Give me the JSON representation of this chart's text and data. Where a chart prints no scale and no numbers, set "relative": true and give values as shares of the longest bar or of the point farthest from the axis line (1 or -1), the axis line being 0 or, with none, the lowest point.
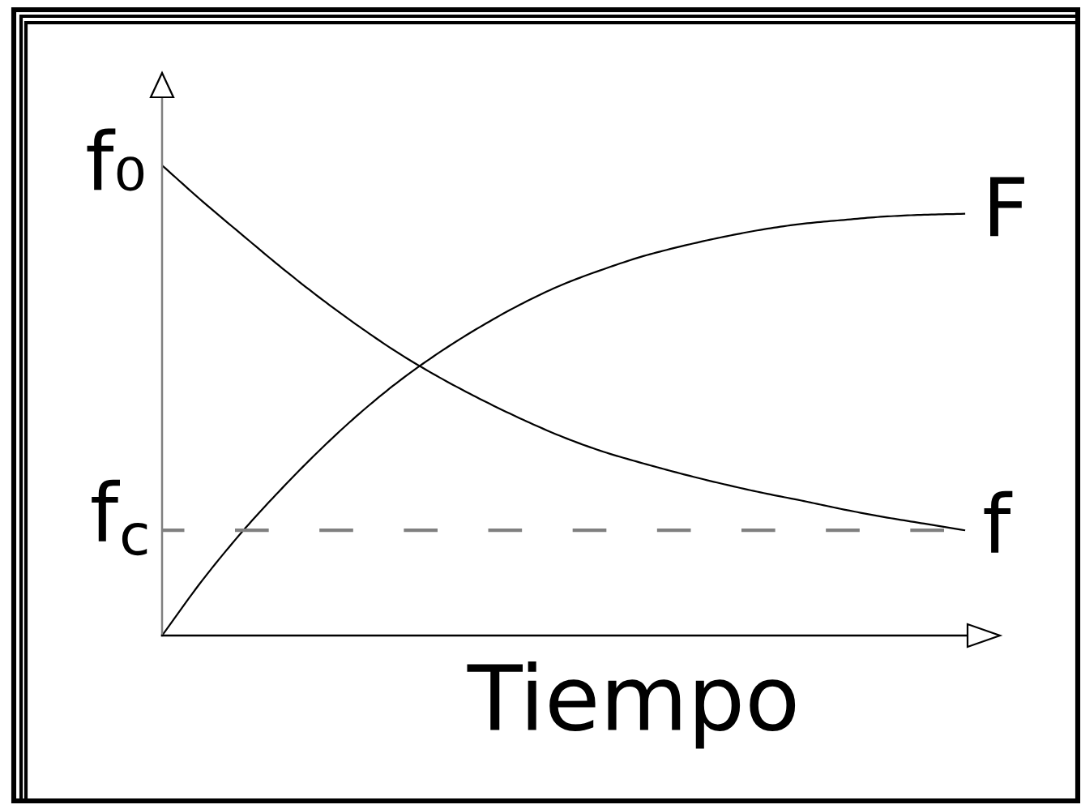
{
  "chart_data": {
    "type": "line",
    "relative": true,
    "xlabel": "Tiempo",
    "categories": [
      null,
      null,
      null,
      null,
      null,
      null,
      null,
      null,
      null,
      null,
      null,
      null,
      null,
      null,
      null,
      null,
      null,
      null,
      null,
      null,
      null
    ],
    "series": [
      {
        "name": "f",
        "color": "#000000",
        "values": [
          1.0,
          0.924,
          0.852,
          0.781,
          0.714,
          0.652,
          0.595,
          0.545,
          0.5,
          0.459,
          0.422,
          0.391,
          0.366,
          0.343,
          0.322,
          0.303,
          0.286,
          0.268,
          0.252,
          0.238,
          0.224
        ]
      },
      {
        "name": "F",
        "color": "#000000",
        "values": [
          0.0,
          0.117,
          0.221,
          0.314,
          0.4,
          0.478,
          0.547,
          0.607,
          0.66,
          0.707,
          0.747,
          0.779,
          0.807,
          0.829,
          0.848,
          0.864,
          0.876,
          0.884,
          0.891,
          0.895,
          0.897
        ]
      }
    ],
    "ref_lines": [
      {
        "axis": "y",
        "value": 0.224,
        "label": "f$_{c}$",
        "color": "#808080",
        "line_style": "dashed"
      }
    ],
    "annotations": [
      "f₀"
    ]
  }
}
